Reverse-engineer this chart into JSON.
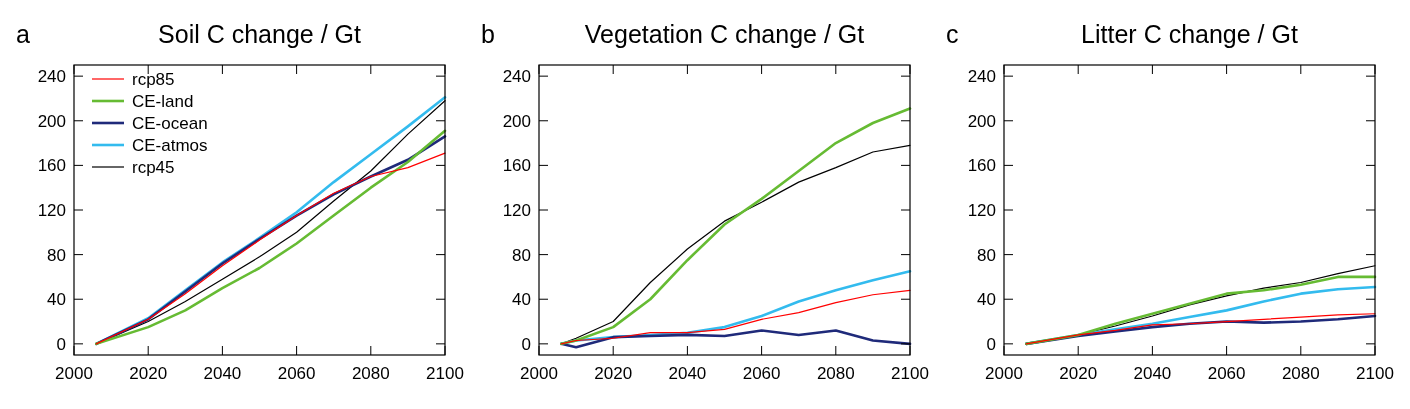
{
  "chart_data": [
    {
      "type": "line",
      "title": "Soil C change / Gt",
      "annotations": [
        "a"
      ],
      "xlim": [
        2000,
        2100
      ],
      "xticks": [
        2000,
        2020,
        2040,
        2060,
        2080,
        2100
      ],
      "ylim": [
        -10,
        250
      ],
      "yticks": [
        0,
        40,
        80,
        120,
        160,
        200,
        240
      ],
      "legend": "top left",
      "x": [
        2006,
        2020,
        2030,
        2040,
        2050,
        2060,
        2070,
        2080,
        2090,
        2100
      ],
      "series": [
        {
          "name": "rcp85",
          "color": "#ff0000",
          "values": [
            0,
            22,
            45,
            70,
            93,
            115,
            135,
            150,
            158,
            171
          ]
        },
        {
          "name": "CE-land",
          "color": "#66bb33",
          "values": [
            0,
            15,
            30,
            50,
            68,
            90,
            115,
            140,
            163,
            191
          ]
        },
        {
          "name": "CE-ocean",
          "color": "#1f2a7a",
          "values": [
            0,
            22,
            47,
            72,
            94,
            115,
            134,
            150,
            165,
            186
          ]
        },
        {
          "name": "CE-atmos",
          "color": "#33bbee",
          "values": [
            0,
            23,
            48,
            73,
            95,
            118,
            145,
            170,
            195,
            221
          ]
        },
        {
          "name": "rcp45",
          "color": "#000000",
          "values": [
            0,
            20,
            38,
            58,
            78,
            100,
            128,
            155,
            188,
            218
          ]
        }
      ]
    },
    {
      "type": "line",
      "title": "Vegetation C change / Gt",
      "annotations": [
        "b"
      ],
      "xlim": [
        2000,
        2100
      ],
      "xticks": [
        2000,
        2020,
        2040,
        2060,
        2080,
        2100
      ],
      "ylim": [
        -10,
        250
      ],
      "yticks": [
        0,
        40,
        80,
        120,
        160,
        200,
        240
      ],
      "x": [
        2006,
        2010,
        2020,
        2030,
        2040,
        2050,
        2060,
        2070,
        2080,
        2090,
        2100
      ],
      "series": [
        {
          "color": "#ff0000",
          "values": [
            0,
            3,
            5,
            10,
            10,
            13,
            22,
            28,
            37,
            44,
            48
          ]
        },
        {
          "color": "#66bb33",
          "values": [
            0,
            3,
            15,
            40,
            75,
            107,
            130,
            155,
            180,
            198,
            211
          ]
        },
        {
          "color": "#1f2a7a",
          "values": [
            0,
            -3,
            6,
            7,
            8,
            7,
            12,
            8,
            12,
            3,
            0
          ]
        },
        {
          "color": "#33bbee",
          "values": [
            0,
            3,
            6,
            8,
            10,
            15,
            25,
            38,
            48,
            57,
            65
          ]
        },
        {
          "color": "#000000",
          "values": [
            0,
            5,
            20,
            55,
            85,
            110,
            127,
            145,
            158,
            172,
            178
          ]
        }
      ]
    },
    {
      "type": "line",
      "title": "Litter C change / Gt",
      "annotations": [
        "c"
      ],
      "xlim": [
        2000,
        2100
      ],
      "xticks": [
        2000,
        2020,
        2040,
        2060,
        2080,
        2100
      ],
      "ylim": [
        -10,
        250
      ],
      "yticks": [
        0,
        40,
        80,
        120,
        160,
        200,
        240
      ],
      "x": [
        2006,
        2020,
        2030,
        2040,
        2050,
        2060,
        2070,
        2080,
        2090,
        2100
      ],
      "series": [
        {
          "color": "#ff0000",
          "values": [
            0,
            8,
            12,
            17,
            18,
            20,
            22,
            24,
            26,
            27
          ]
        },
        {
          "color": "#66bb33",
          "values": [
            0,
            8,
            18,
            27,
            36,
            45,
            48,
            53,
            60,
            60
          ]
        },
        {
          "color": "#1f2a7a",
          "values": [
            0,
            7,
            11,
            15,
            18,
            20,
            19,
            20,
            22,
            25
          ]
        },
        {
          "color": "#33bbee",
          "values": [
            0,
            8,
            13,
            18,
            24,
            30,
            38,
            45,
            49,
            51
          ]
        },
        {
          "color": "#000000",
          "values": [
            0,
            8,
            16,
            25,
            35,
            43,
            50,
            55,
            63,
            70
          ]
        }
      ]
    }
  ]
}
